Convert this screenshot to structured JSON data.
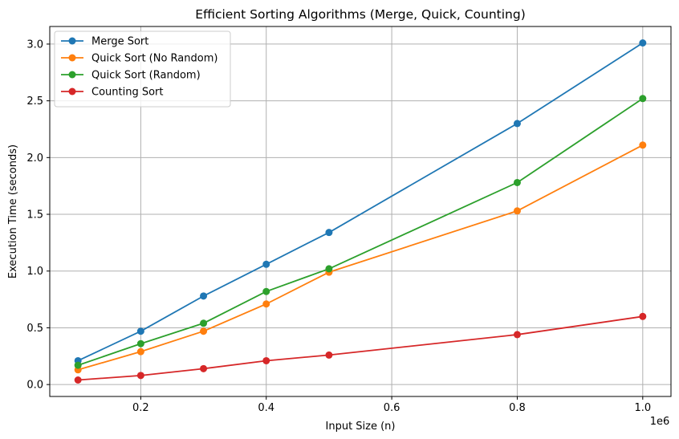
{
  "chart_data": {
    "type": "line",
    "title": "Efficient Sorting Algorithms (Merge, Quick, Counting)",
    "xlabel": "Input Size (n)",
    "ylabel": "Execution Time (seconds)",
    "x_offset_label": "1e6",
    "x": [
      100000,
      200000,
      300000,
      400000,
      500000,
      800000,
      1000000
    ],
    "xlim": [
      55000,
      1045000
    ],
    "ylim": [
      -0.105,
      3.155
    ],
    "x_ticks": [
      200000,
      400000,
      600000,
      800000,
      1000000
    ],
    "x_tick_labels": [
      "0.2",
      "0.4",
      "0.6",
      "0.8",
      "1.0"
    ],
    "y_ticks": [
      0.0,
      0.5,
      1.0,
      1.5,
      2.0,
      2.5,
      3.0
    ],
    "y_tick_labels": [
      "0.0",
      "0.5",
      "1.0",
      "1.5",
      "2.0",
      "2.5",
      "3.0"
    ],
    "grid": true,
    "legend_position": "top-left",
    "series": [
      {
        "name": "Merge Sort",
        "color": "#1f77b4",
        "marker": "circle",
        "values": [
          0.21,
          0.47,
          0.78,
          1.06,
          1.34,
          2.3,
          3.01
        ]
      },
      {
        "name": "Quick Sort (No Random)",
        "color": "#ff7f0e",
        "marker": "circle",
        "values": [
          0.13,
          0.29,
          0.47,
          0.71,
          0.99,
          1.53,
          2.11
        ]
      },
      {
        "name": "Quick Sort (Random)",
        "color": "#2ca02c",
        "marker": "circle",
        "values": [
          0.17,
          0.36,
          0.54,
          0.82,
          1.02,
          1.78,
          2.52
        ]
      },
      {
        "name": "Counting Sort",
        "color": "#d62728",
        "marker": "circle",
        "values": [
          0.04,
          0.08,
          0.14,
          0.21,
          0.26,
          0.44,
          0.6
        ]
      }
    ]
  }
}
